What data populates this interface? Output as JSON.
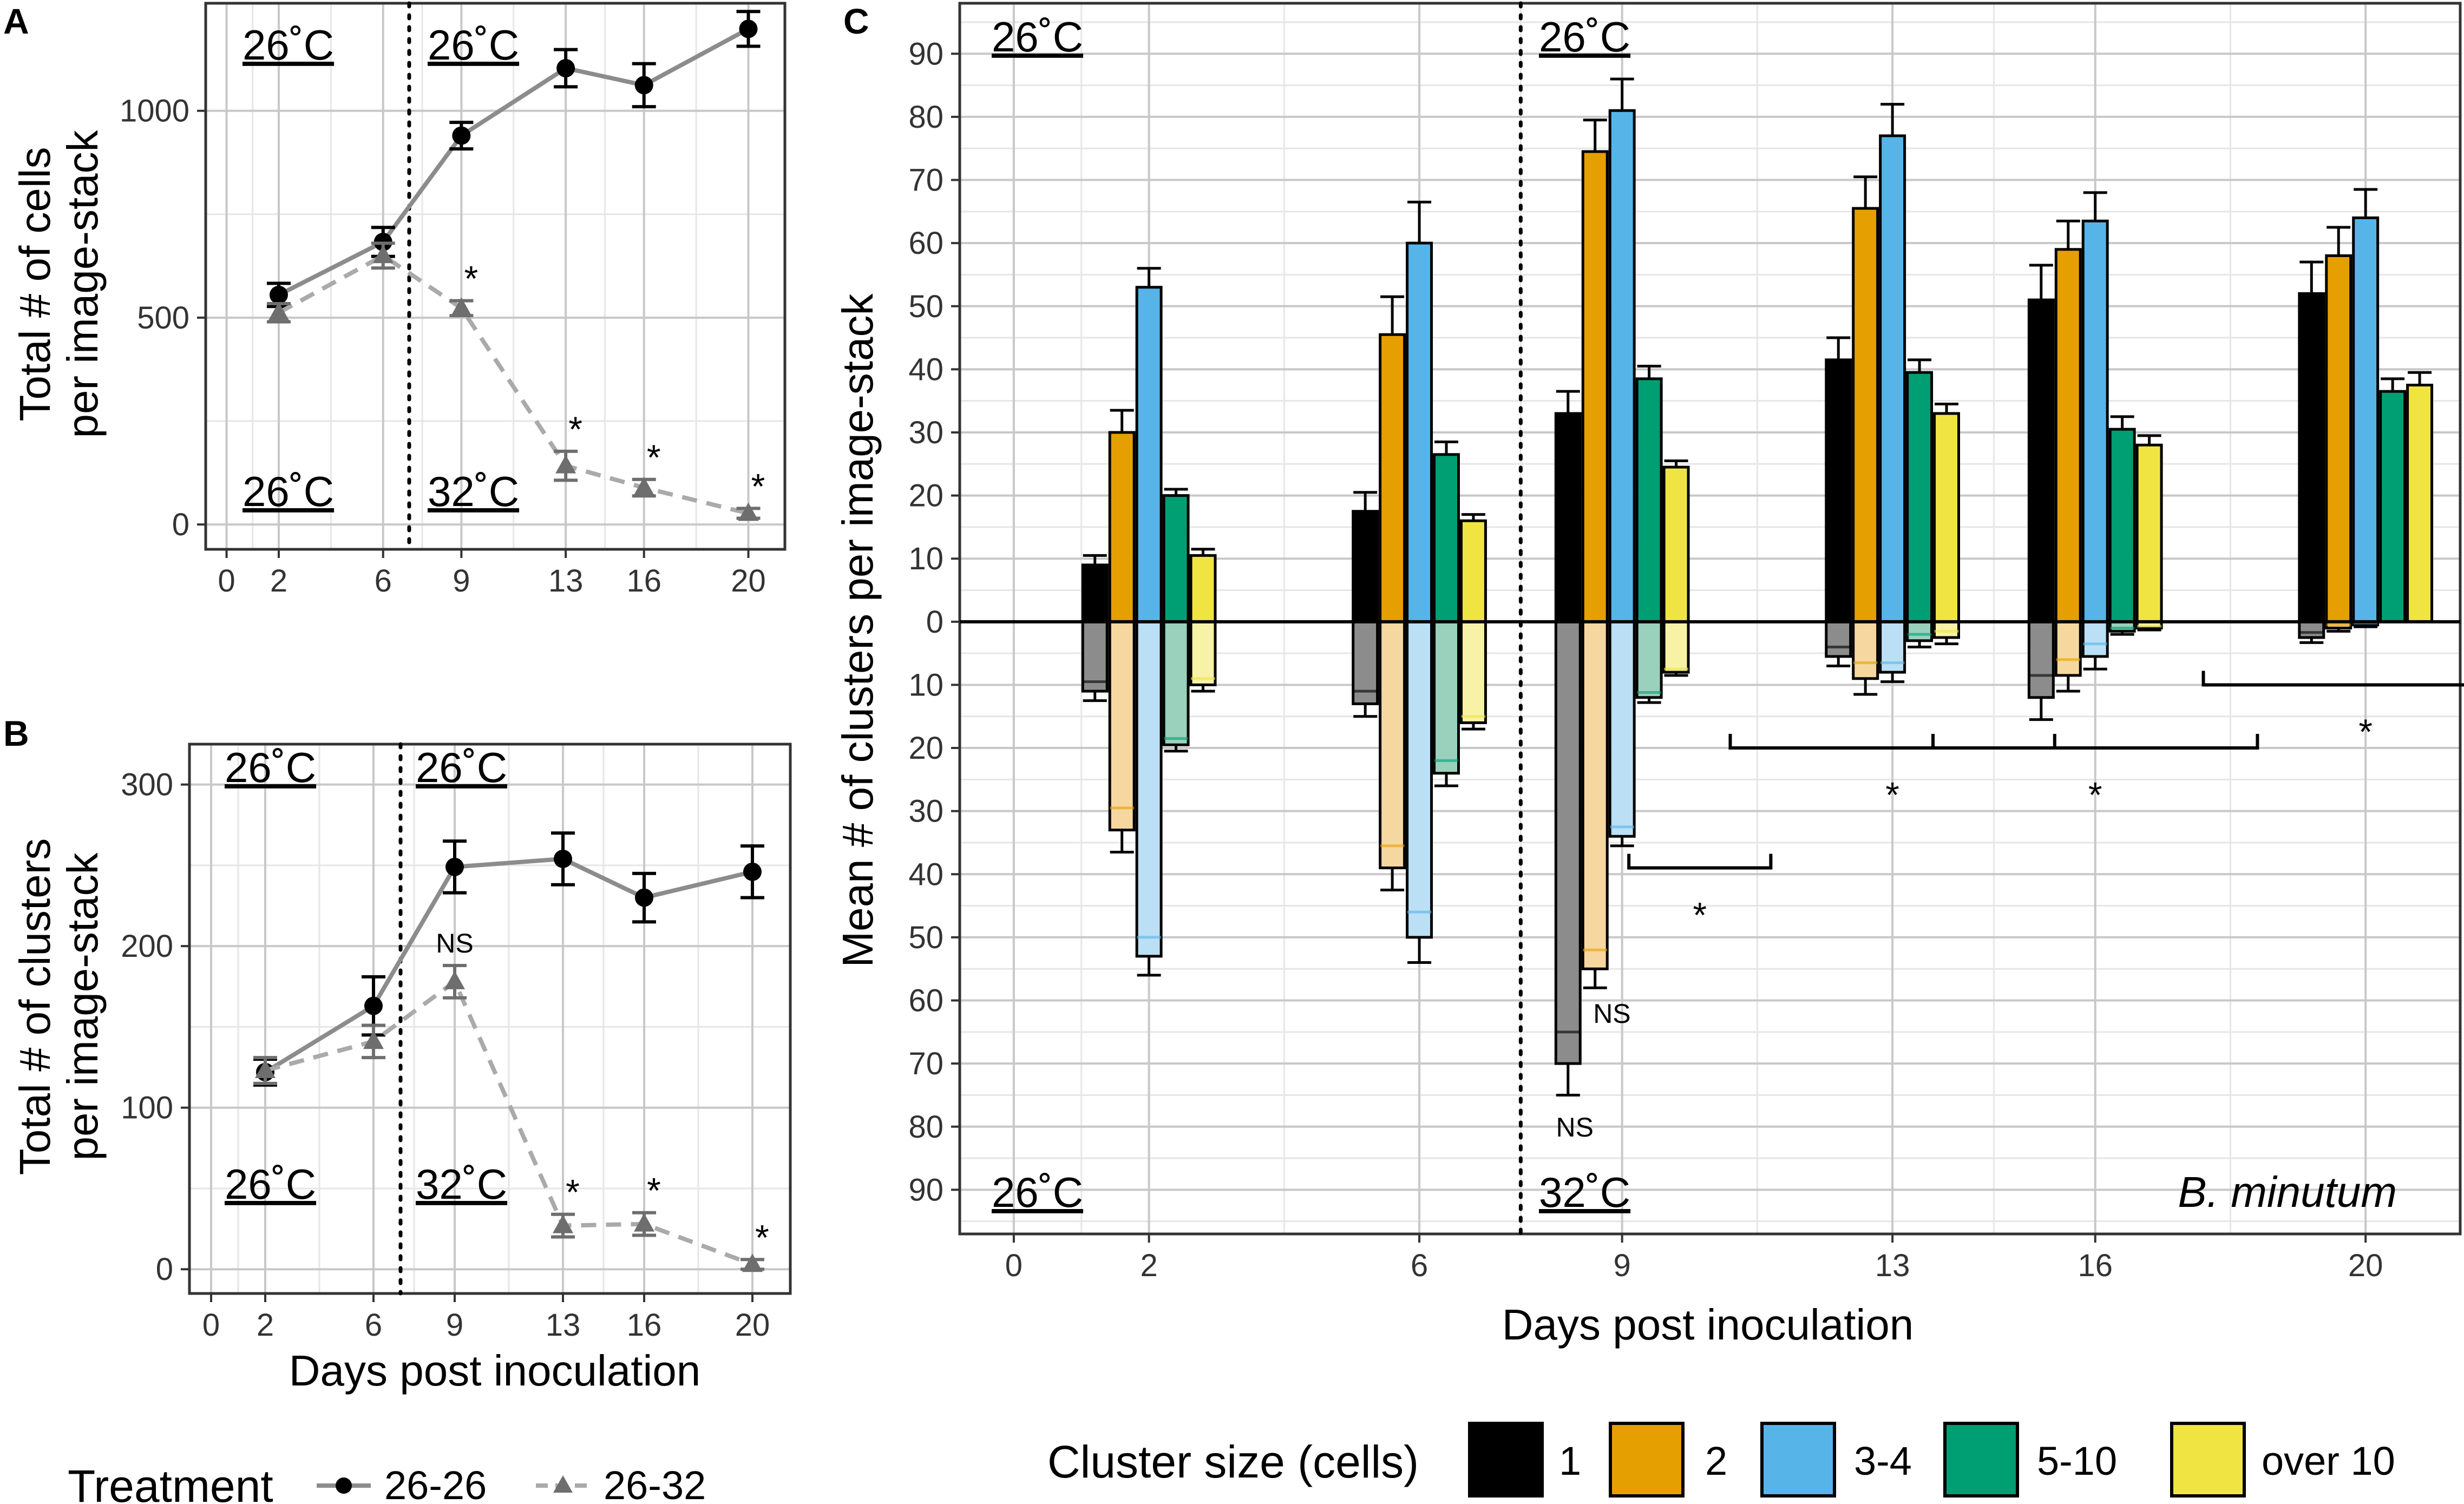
{
  "colors": {
    "c1": "#000000",
    "c2": "#E69F00",
    "c3": "#56B4E9",
    "c4": "#009E73",
    "c5": "#F0E442",
    "c1_light": "#8C8C8C",
    "c2_light": "#F6D7A0",
    "c3_light": "#BBDFF4",
    "c4_light": "#99D1BC",
    "c5_light": "#F8F2A6",
    "line_2626": "#000000",
    "line_2632": "#6E6E6E",
    "line_2626_stroke": "#8C8C8C",
    "line_2632_stroke": "#AAAAAA",
    "grid_major": "#C8C8C8",
    "grid_minor": "#E6E6E6"
  },
  "chart_data": [
    {
      "id": "A",
      "panel_label": "A",
      "type": "line",
      "ylabel_line1": "Total # of cells",
      "ylabel_line2": "per image-stack",
      "xlabel": "",
      "xticks": [
        "0",
        "2",
        "6",
        "9",
        "13",
        "16",
        "20"
      ],
      "yticks": [
        "0",
        "500",
        "1000"
      ],
      "xlim": [
        -0.8,
        21.4
      ],
      "ylim": [
        -60,
        1260
      ],
      "temp_shift_day": 7,
      "temp_top_left": "26˚C",
      "temp_top_right": "26˚C",
      "temp_bottom_left": "26˚C",
      "temp_bottom_right": "32˚C",
      "series": [
        {
          "name": "26-26",
          "x": [
            2,
            6,
            9,
            13,
            16,
            20
          ],
          "values": [
            555,
            683,
            940,
            1103,
            1062,
            1198
          ],
          "err": [
            28,
            35,
            32,
            45,
            52,
            42
          ]
        },
        {
          "name": "26-32",
          "x": [
            2,
            6,
            9,
            13,
            16,
            20
          ],
          "values": [
            512,
            650,
            523,
            142,
            89,
            27
          ],
          "err": [
            22,
            30,
            18,
            35,
            20,
            12
          ],
          "sig": [
            "",
            "",
            "*",
            "*",
            "*",
            "*"
          ]
        }
      ]
    },
    {
      "id": "B",
      "panel_label": "B",
      "type": "line",
      "ylabel_line1": "Total # of clusters",
      "ylabel_line2": "per image-stack",
      "xlabel": "Days post inoculation",
      "xticks": [
        "0",
        "2",
        "6",
        "9",
        "13",
        "16",
        "20"
      ],
      "yticks": [
        "0",
        "100",
        "200",
        "300"
      ],
      "xlim": [
        -0.8,
        21.4
      ],
      "ylim": [
        -15,
        325
      ],
      "temp_shift_day": 7,
      "temp_top_left": "26˚C",
      "temp_top_right": "26˚C",
      "temp_bottom_left": "26˚C",
      "temp_bottom_right": "32˚C",
      "series": [
        {
          "name": "26-26",
          "x": [
            2,
            6,
            9,
            13,
            16,
            20
          ],
          "values": [
            122,
            163,
            249,
            254,
            230,
            246
          ],
          "err": [
            8,
            18,
            16,
            16,
            15,
            16
          ]
        },
        {
          "name": "26-32",
          "x": [
            2,
            6,
            9,
            13,
            16,
            20
          ],
          "values": [
            123,
            141,
            178,
            27,
            28,
            3
          ],
          "err": [
            8,
            10,
            10,
            7,
            7,
            3
          ],
          "sig": [
            "",
            "",
            "NS",
            "*",
            "*",
            "*"
          ]
        }
      ]
    },
    {
      "id": "C",
      "panel_label": "C",
      "type": "bar",
      "ylabel": "Mean # of clusters per image-stack",
      "xlabel": "Days post inoculation",
      "xticks": [
        "0",
        "2",
        "6",
        "9",
        "13",
        "16",
        "20"
      ],
      "yticks": [
        "90",
        "80",
        "70",
        "60",
        "50",
        "40",
        "30",
        "20",
        "10",
        "0",
        "10",
        "20",
        "30",
        "40",
        "50",
        "60",
        "70",
        "80",
        "90"
      ],
      "xlim": [
        -0.8,
        21.4
      ],
      "ylim": [
        -97,
        98
      ],
      "temp_shift_day": 7.5,
      "temp_top_left": "26˚C",
      "temp_top_right": "26˚C",
      "temp_bottom_left": "26˚C",
      "temp_bottom_right": "32˚C",
      "organism": "B. minutum",
      "categories": [
        "1",
        "2",
        "3-4",
        "5-10",
        "over 10"
      ],
      "days": [
        2,
        6,
        9,
        13,
        16,
        20
      ],
      "upper_26_26": [
        [
          9,
          30,
          53,
          20,
          10.5
        ],
        [
          17.5,
          45.5,
          60,
          26.5,
          16
        ],
        [
          33,
          74.5,
          81,
          38.5,
          24.5
        ],
        [
          41.5,
          65.5,
          77,
          39.5,
          33
        ],
        [
          51,
          59,
          63.5,
          30.5,
          28
        ],
        [
          52,
          58,
          64,
          36.5,
          37.5
        ]
      ],
      "upper_err": [
        [
          1.5,
          3.5,
          3,
          1,
          1
        ],
        [
          3,
          6,
          6.5,
          2,
          1
        ],
        [
          3.5,
          5,
          5,
          2,
          1
        ],
        [
          3.5,
          5,
          5,
          2,
          1.5
        ],
        [
          5.5,
          4.5,
          4.5,
          2,
          1.5
        ],
        [
          5,
          4.5,
          4.5,
          2,
          2
        ]
      ],
      "lower_26_32": [
        [
          11,
          33,
          53,
          19.5,
          10
        ],
        [
          13,
          39,
          50,
          24,
          16
        ],
        [
          70,
          55,
          34,
          12,
          8
        ],
        [
          5.5,
          9,
          8,
          3,
          2.5
        ],
        [
          12,
          8.5,
          5.5,
          1.5,
          1
        ],
        [
          2.5,
          1,
          0.5,
          0,
          0
        ]
      ],
      "lower_err": [
        [
          1.5,
          3.5,
          3,
          1,
          1
        ],
        [
          2,
          3.5,
          4,
          2,
          1
        ],
        [
          5,
          3,
          1.5,
          0.8,
          0.5
        ],
        [
          1.5,
          2.5,
          1.5,
          1,
          1
        ],
        [
          3.5,
          2.5,
          2,
          0.5,
          0.3
        ],
        [
          0.8,
          0.5,
          0.3,
          0,
          0
        ]
      ],
      "annotations": [
        {
          "label": "NS",
          "day": 8.85,
          "value": -62
        },
        {
          "label": "NS",
          "day": 8.3,
          "value": -80
        },
        {
          "label": "*",
          "day": 10.15,
          "value": -46
        },
        {
          "label": "*",
          "day": 13,
          "value": -27
        },
        {
          "label": "*",
          "day": 16,
          "value": -27
        },
        {
          "label": "*",
          "day": 20,
          "value": -17
        }
      ],
      "brackets": [
        {
          "x0": 9.1,
          "x1": 11.2,
          "value": -39
        },
        {
          "x0": 10.6,
          "x1": 15.4,
          "value": -20
        },
        {
          "x0": 13.6,
          "x1": 18.4,
          "value": -20
        },
        {
          "x0": 17.6,
          "x1": 22.4,
          "value": -10
        }
      ]
    }
  ],
  "legend_treatment": {
    "title": "Treatment",
    "items": [
      "26-26",
      "26-32"
    ]
  },
  "legend_cluster": {
    "title": "Cluster size (cells)",
    "items": [
      "1",
      "2",
      "3-4",
      "5-10",
      "over 10"
    ]
  }
}
